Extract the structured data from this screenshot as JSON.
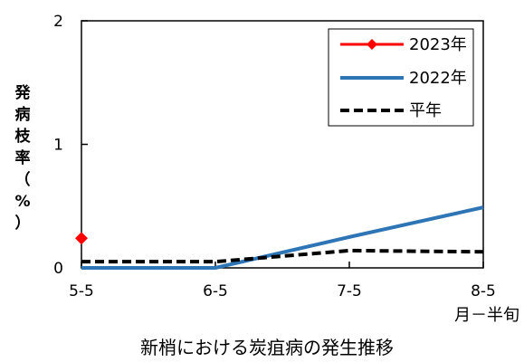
{
  "chart_data": {
    "type": "line",
    "categories": [
      "5-5",
      "6-5",
      "7-5",
      "8-5"
    ],
    "x_unit_label": "月－半旬",
    "ylabel": "発病枝率（%）",
    "ylim": [
      0,
      2
    ],
    "y_ticks": [
      "0",
      "1",
      "2"
    ],
    "title": "新梢における炭疽病の発生推移",
    "grid": false,
    "legend_position": "top-right",
    "series": [
      {
        "name": "2023年",
        "color": "#ff0000",
        "style": "solid-diamond",
        "values": [
          0.24,
          null,
          null,
          null
        ]
      },
      {
        "name": "2022年",
        "color": "#2e75b6",
        "style": "solid",
        "values": [
          0.0,
          0.0,
          0.25,
          0.49
        ]
      },
      {
        "name": "平年",
        "color": "#000000",
        "style": "dashed",
        "values": [
          0.05,
          0.05,
          0.14,
          0.13
        ]
      }
    ]
  }
}
